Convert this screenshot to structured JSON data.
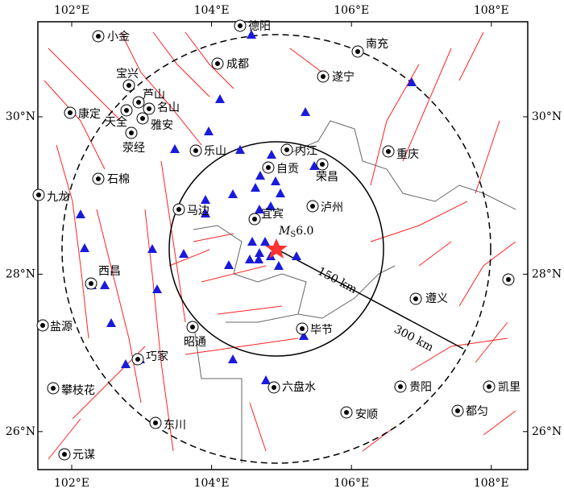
{
  "map": {
    "longitude_ticks": [
      {
        "value": 102,
        "label": "102°E"
      },
      {
        "value": 104,
        "label": "104°E"
      },
      {
        "value": 106,
        "label": "106°E"
      },
      {
        "value": 108,
        "label": "108°E"
      }
    ],
    "latitude_ticks": [
      {
        "value": 30,
        "label": "30°N"
      },
      {
        "value": 28,
        "label": "28°N"
      },
      {
        "value": 26,
        "label": "26°N"
      }
    ],
    "cities": [
      "小金",
      "德阳",
      "南充",
      "宝兴",
      "成都",
      "遂宁",
      "芦山",
      "天全",
      "名山",
      "雅安",
      "康定",
      "荥经",
      "乐山",
      "内江",
      "自贡",
      "荣昌",
      "重庆",
      "石棉",
      "九龙",
      "马边",
      "泸州",
      "宜宾",
      "西昌",
      "遵义",
      "盐源",
      "昭通",
      "毕节",
      "巧家",
      "六盘水",
      "攀枝花",
      "贵阳",
      "凯里",
      "都匀",
      "安顺",
      "东川",
      "元谋"
    ],
    "epicenter": {
      "symbol": "M",
      "subscript": "S",
      "magnitude": "6.0"
    },
    "radius_labels": [
      "150 km",
      "300 km"
    ]
  }
}
